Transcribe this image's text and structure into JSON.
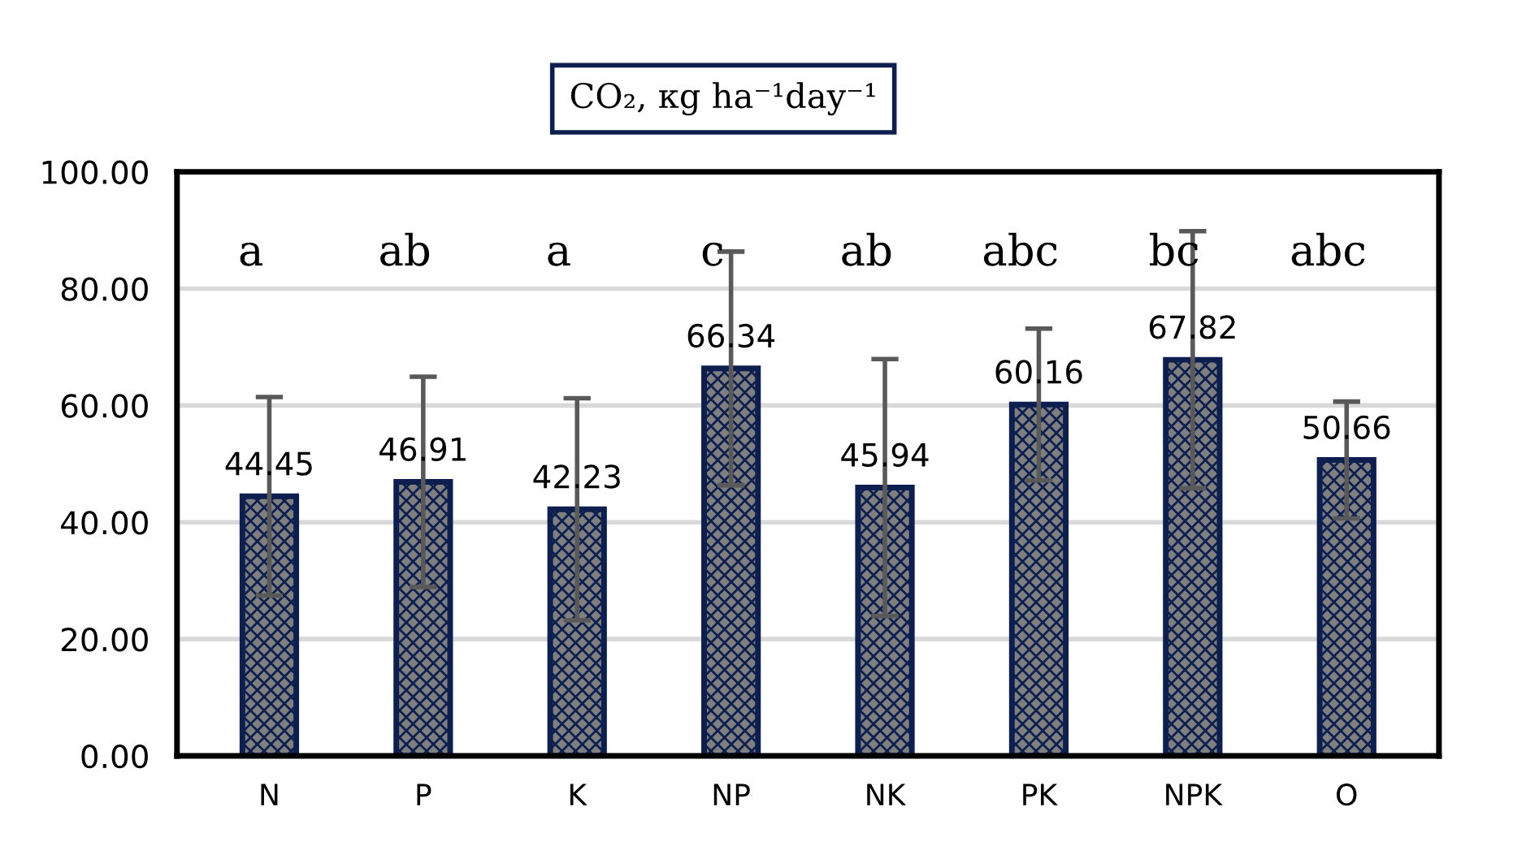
{
  "chart_data": {
    "type": "bar",
    "title": "CO₂, кg ha⁻¹day⁻¹",
    "categories": [
      "N",
      "P",
      "K",
      "NP",
      "NK",
      "PK",
      "NPK",
      "O"
    ],
    "series": [
      {
        "color": "#0d1f4f",
        "values": [
          44.45,
          46.91,
          42.23,
          66.34,
          45.94,
          60.16,
          67.82,
          50.66
        ],
        "errors": [
          17,
          18,
          19,
          20,
          22,
          13,
          22,
          10
        ]
      }
    ],
    "data_labels": true,
    "ylim": [
      0,
      100
    ],
    "yticks": [
      {
        "value": 0,
        "label": "0.00"
      },
      {
        "value": 20,
        "label": "20.00"
      },
      {
        "value": 40,
        "label": "40.00"
      },
      {
        "value": 60,
        "label": "60.00"
      },
      {
        "value": 80,
        "label": "80.00"
      },
      {
        "value": 100,
        "label": "100.00"
      }
    ],
    "grid": "y",
    "annotations": [
      "a",
      "ab",
      "a",
      "c",
      "ab",
      "abc",
      "bc",
      "abc"
    ]
  }
}
